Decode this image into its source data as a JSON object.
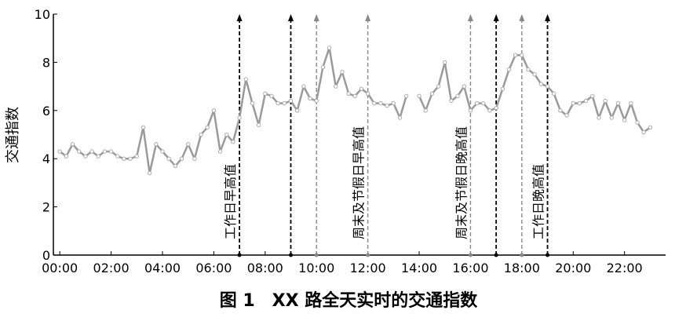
{
  "chart_data": {
    "type": "line",
    "caption": "图 1　XX 路全天实时的交通指数",
    "y_label": "交通指数",
    "x": [
      0,
      0.25,
      0.5,
      0.75,
      1,
      1.25,
      1.5,
      1.75,
      2,
      2.25,
      2.5,
      2.75,
      3,
      3.25,
      3.5,
      3.75,
      4,
      4.25,
      4.5,
      4.75,
      5,
      5.25,
      5.5,
      5.75,
      6,
      6.25,
      6.5,
      6.75,
      7,
      7.25,
      7.5,
      7.75,
      8,
      8.25,
      8.5,
      8.75,
      9,
      9.25,
      9.5,
      9.75,
      10,
      10.25,
      10.5,
      10.75,
      11,
      11.25,
      11.5,
      11.75,
      12,
      12.25,
      12.5,
      12.75,
      13,
      13.25,
      13.5,
      13.75,
      14,
      14.25,
      14.5,
      14.75,
      15,
      15.25,
      15.5,
      15.75,
      16,
      16.25,
      16.5,
      16.75,
      17,
      17.25,
      17.5,
      17.75,
      18,
      18.25,
      18.5,
      18.75,
      19,
      19.25,
      19.5,
      19.75,
      20,
      20.25,
      20.5,
      20.75,
      21,
      21.25,
      21.5,
      21.75,
      22,
      22.25,
      22.5,
      22.75,
      23
    ],
    "series": [
      {
        "color": "#9a9a9a",
        "values": [
          4.3,
          4.1,
          4.6,
          4.3,
          4.1,
          4.3,
          4.1,
          4.3,
          4.3,
          4.1,
          4.0,
          4.0,
          4.1,
          5.3,
          3.4,
          4.6,
          4.3,
          4.0,
          3.7,
          4.0,
          4.6,
          4.0,
          5.0,
          5.3,
          6.0,
          4.3,
          5.0,
          4.7,
          5.7,
          7.3,
          6.3,
          5.4,
          6.7,
          6.6,
          6.3,
          6.3,
          6.4,
          6.0,
          7.0,
          6.5,
          6.4,
          7.8,
          8.6,
          7.0,
          7.6,
          6.7,
          6.6,
          6.9,
          6.7,
          6.3,
          6.3,
          6.2,
          6.3,
          5.7,
          6.6,
          null,
          6.6,
          6.0,
          6.7,
          7.0,
          8.0,
          6.4,
          6.6,
          7.0,
          6.0,
          6.3,
          6.3,
          6.0,
          6.1,
          6.9,
          7.7,
          8.3,
          8.3,
          7.7,
          7.5,
          7.1,
          7.0,
          6.7,
          6.0,
          5.8,
          6.3,
          6.3,
          6.4,
          6.6,
          5.7,
          6.4,
          5.7,
          6.3,
          5.6,
          6.3,
          5.5,
          5.1,
          5.3
        ]
      }
    ],
    "xlim": [
      -0.25,
      23.6
    ],
    "ylim": [
      0,
      10
    ],
    "xticks": [
      {
        "value": 0,
        "label": "00:00"
      },
      {
        "value": 2,
        "label": "02:00"
      },
      {
        "value": 4,
        "label": "04:00"
      },
      {
        "value": 6,
        "label": "06:00"
      },
      {
        "value": 8,
        "label": "08:00"
      },
      {
        "value": 10,
        "label": "10:00"
      },
      {
        "value": 12,
        "label": "12:00"
      },
      {
        "value": 14,
        "label": "14:00"
      },
      {
        "value": 16,
        "label": "16:00"
      },
      {
        "value": 18,
        "label": "18:00"
      },
      {
        "value": 20,
        "label": "20:00"
      },
      {
        "value": 22,
        "label": "22:00"
      }
    ],
    "yticks": [
      0,
      2,
      4,
      6,
      8,
      10
    ],
    "markers": [
      {
        "x": 7,
        "color": "#000000"
      },
      {
        "x": 9,
        "color": "#000000"
      },
      {
        "x": 10,
        "color": "#888888"
      },
      {
        "x": 12,
        "color": "#888888"
      },
      {
        "x": 16,
        "color": "#888888"
      },
      {
        "x": 17,
        "color": "#000000"
      },
      {
        "x": 18,
        "color": "#888888"
      },
      {
        "x": 19,
        "color": "#000000"
      }
    ],
    "annotations": [
      {
        "text": "工作日早高值",
        "x": 7
      },
      {
        "text": "周末及节假日早高值",
        "x": 12
      },
      {
        "text": "周末及节假日晚高值",
        "x": 16
      },
      {
        "text": "工作日晚高值",
        "x": 19
      }
    ]
  }
}
